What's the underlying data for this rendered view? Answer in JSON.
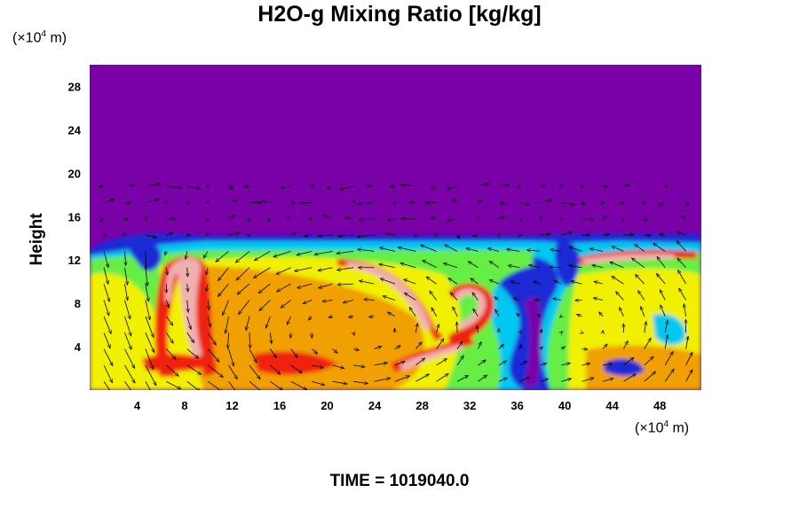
{
  "chart_data": {
    "type": "heatmap",
    "title": "H2O-g Mixing Ratio [kg/kg]",
    "ylabel": "Height",
    "y_unit": {
      "prefix": "(×10",
      "exp": "4",
      "suffix": " m)"
    },
    "x_unit": {
      "prefix": "(×10",
      "exp": "4",
      "suffix": " m)"
    },
    "xlim": [
      0,
      51.5
    ],
    "ylim": [
      0,
      30
    ],
    "x_ticks": [
      4,
      8,
      12,
      16,
      20,
      24,
      28,
      32,
      36,
      40,
      44,
      48
    ],
    "y_ticks": [
      4,
      8,
      12,
      16,
      20,
      24,
      28
    ],
    "overlay": "wind vectors",
    "colors": {
      "background": "#7a00a8",
      "blue": "#1a2bd6",
      "cyan": "#00c8f0",
      "green": "#66ee44",
      "yellow": "#f0f000",
      "orange": "#f0a000",
      "red": "#f02010",
      "pink": "#f0b0b0",
      "arrow": "#000000"
    }
  },
  "footer": {
    "time_label": "TIME = 1019040.0"
  }
}
